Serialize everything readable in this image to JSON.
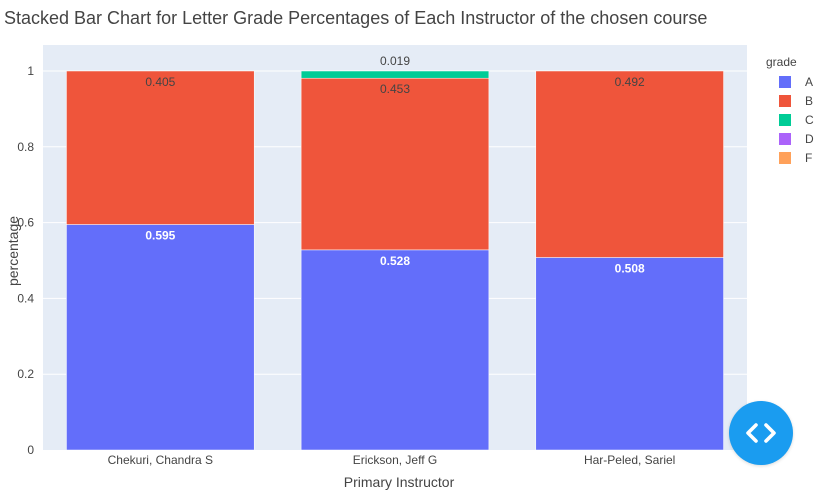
{
  "chart_data": {
    "type": "bar",
    "barmode": "stack",
    "title": "Stacked Bar Chart for Letter Grade Percentages of Each Instructor of the chosen course",
    "xlabel": "Primary Instructor",
    "ylabel": "percentage",
    "categories": [
      "Chekuri, Chandra S",
      "Erickson, Jeff G",
      "Har-Peled, Sariel"
    ],
    "ylim": [
      0,
      1
    ],
    "yticks": [
      0,
      0.2,
      0.4,
      0.6,
      0.8,
      1
    ],
    "ytick_labels": [
      "0",
      "0.2",
      "0.4",
      "0.6",
      "0.8",
      "1"
    ],
    "grid": true,
    "legend_title": "grade",
    "legend_position": "right",
    "series": [
      {
        "name": "A",
        "color": "#636efa",
        "values": [
          0.595,
          0.528,
          0.508
        ],
        "labels": [
          "0.595",
          "0.528",
          "0.508"
        ]
      },
      {
        "name": "B",
        "color": "#ef553b",
        "values": [
          0.405,
          0.453,
          0.492
        ],
        "labels": [
          "0.405",
          "0.453",
          "0.492"
        ]
      },
      {
        "name": "C",
        "color": "#00cc96",
        "values": [
          0,
          0.019,
          0
        ],
        "labels": [
          "",
          "0.019",
          ""
        ]
      },
      {
        "name": "D",
        "color": "#ab63fa",
        "values": [
          0,
          0,
          0
        ],
        "labels": [
          "",
          "",
          ""
        ]
      },
      {
        "name": "F",
        "color": "#ffa15a",
        "values": [
          0,
          0,
          0
        ],
        "labels": [
          "",
          "",
          ""
        ]
      }
    ]
  },
  "ui": {
    "fab_icon": "code-brackets-icon",
    "fab_color": "#1a9cf0"
  }
}
